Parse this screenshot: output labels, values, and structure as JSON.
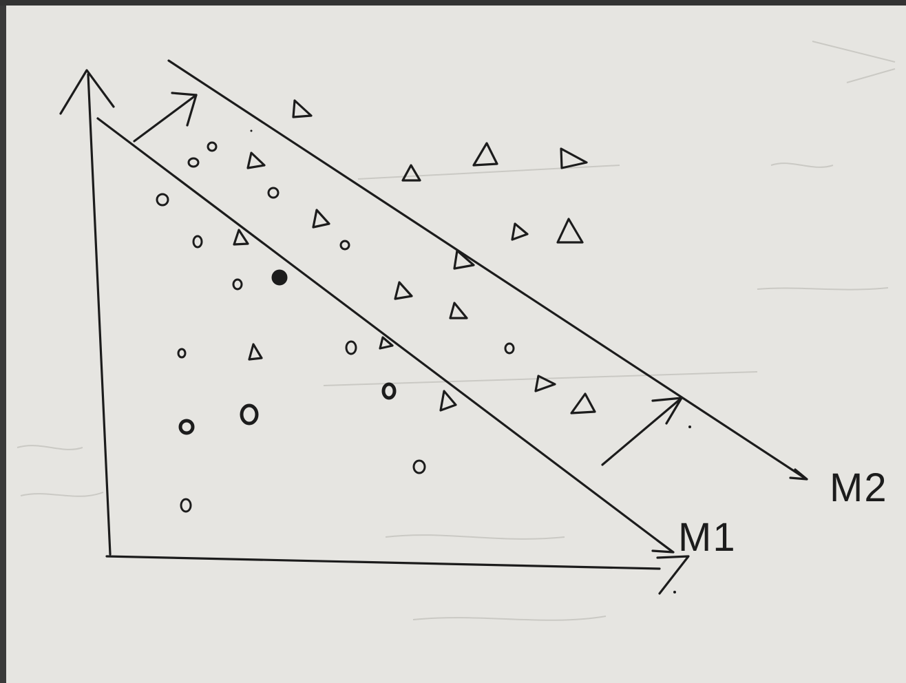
{
  "labels": {
    "boundary_1": "M1",
    "boundary_2": "M2"
  },
  "legend": {
    "class_a": "o",
    "class_b": "Δ"
  },
  "colors": {
    "paper": "#e6e5e1",
    "ink": "#1c1c1c",
    "bleed_through": "#c9c8c3"
  }
}
